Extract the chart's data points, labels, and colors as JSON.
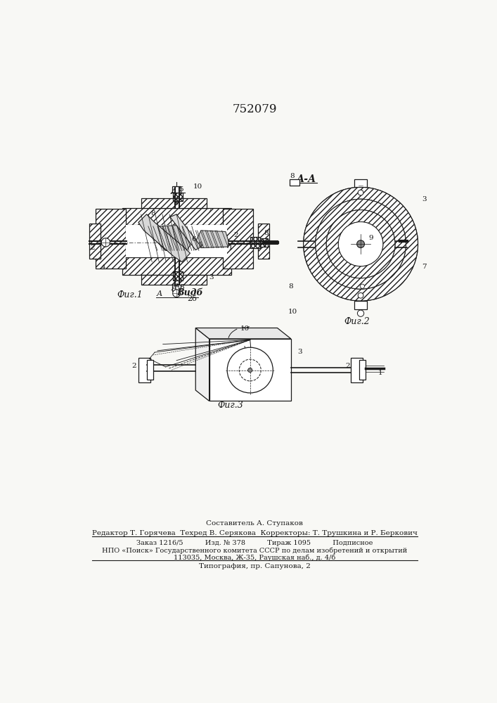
{
  "patent_number": "752079",
  "background_color": "#f8f8f5",
  "text_color": "#1a1a1a",
  "hatch_color": "#555555",
  "footer_lines": [
    "Составитель А. Ступаков",
    "Редактор Т. Горячева  Техред В. Серякова  Корректоры: Т. Трушкина и Р. Беркович",
    "Заказ 1216/5          Изд. № 378          Тираж 1095          Подписное",
    "НПО «Поиск» Государственного комитета СССР по делам изобретений и открытий",
    "113035, Москва, Ж-35, Раушская наб., д. 4/б",
    "Типография, пр. Сапунова, 2"
  ],
  "fig1_label": "Фиг.1",
  "fig2_label": "Фиг.2",
  "fig3_label": "Фиг.3",
  "vidb_label": "Видб",
  "vidb_sublabel": "2б",
  "section_label": "А-А",
  "arrow_label": "А"
}
